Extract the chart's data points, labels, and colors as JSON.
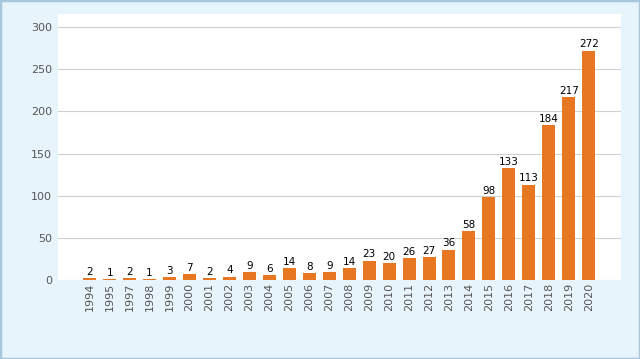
{
  "categories": [
    "1994",
    "1995",
    "1997",
    "1998",
    "1999",
    "2000",
    "2001",
    "2002",
    "2003",
    "2004",
    "2005",
    "2006",
    "2007",
    "2008",
    "2009",
    "2010",
    "2011",
    "2012",
    "2013",
    "2014",
    "2015",
    "2016",
    "2017",
    "2018",
    "2019",
    "2020"
  ],
  "values": [
    2,
    1,
    2,
    1,
    3,
    7,
    2,
    4,
    9,
    6,
    14,
    8,
    9,
    14,
    23,
    20,
    26,
    27,
    36,
    58,
    98,
    133,
    113,
    184,
    217,
    272
  ],
  "bar_color": "#E87722",
  "background_color": "#E8F4FB",
  "plot_bg_color": "#FFFFFF",
  "ylim": [
    0,
    315
  ],
  "yticks": [
    0,
    50,
    100,
    150,
    200,
    250,
    300
  ],
  "label_fontsize": 8.0,
  "value_fontsize": 7.5,
  "grid_color": "#D0D0D0",
  "border_color": "#A8C8E0"
}
